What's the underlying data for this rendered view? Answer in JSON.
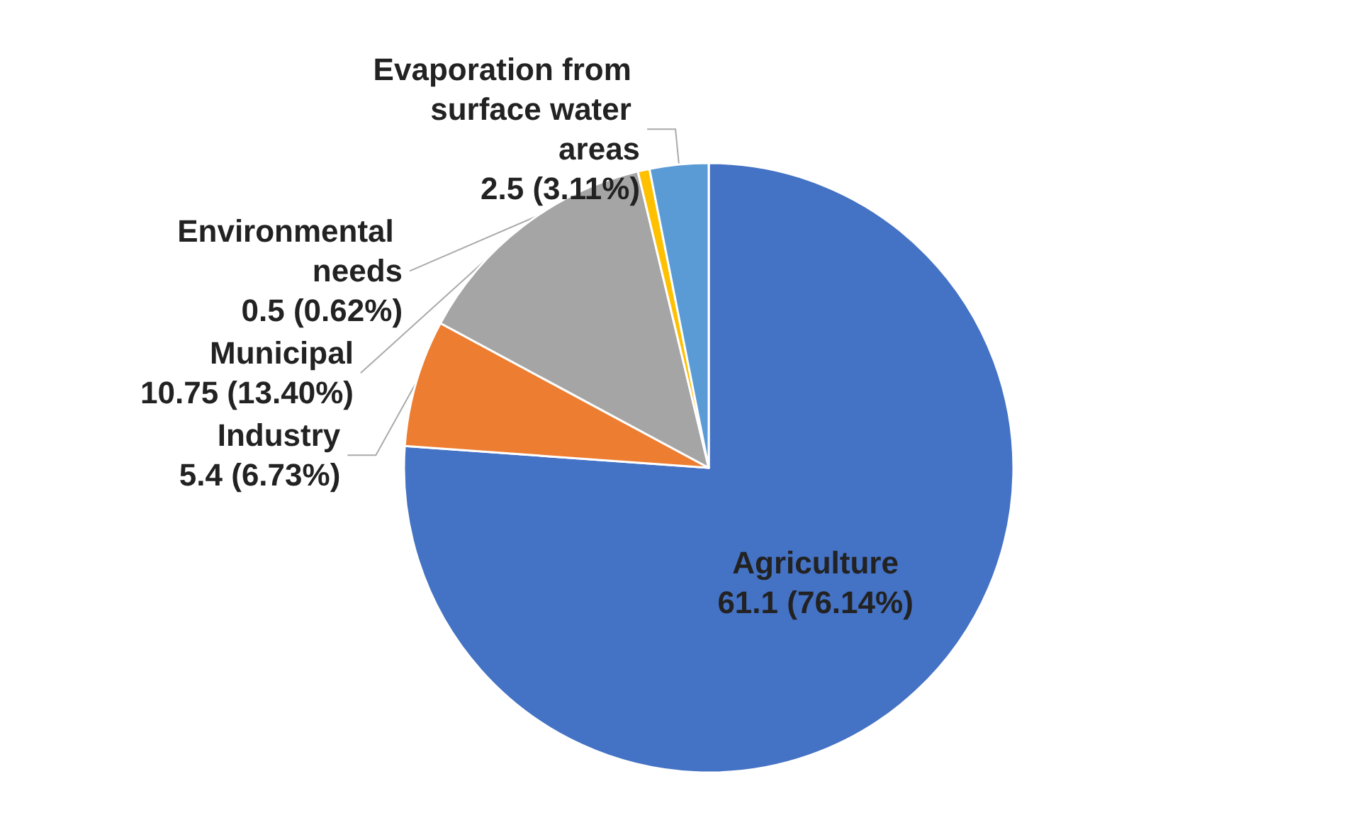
{
  "chart_data": {
    "type": "pie",
    "categories": [
      "Agriculture",
      "Industry",
      "Municipal",
      "Environmental needs",
      "Evaporation from surface water areas"
    ],
    "values": [
      61.1,
      5.4,
      10.75,
      0.5,
      2.5
    ],
    "value_labels": [
      "61.1 (76.14%)",
      "5.4 (6.73%)",
      "10.75 (13.40%)",
      "0.5 (0.62%)",
      "2.5 (3.11%)"
    ],
    "colors": [
      "#4472c4",
      "#ed7d31",
      "#a5a5a5",
      "#ffc000",
      "#5b9bd5"
    ]
  }
}
